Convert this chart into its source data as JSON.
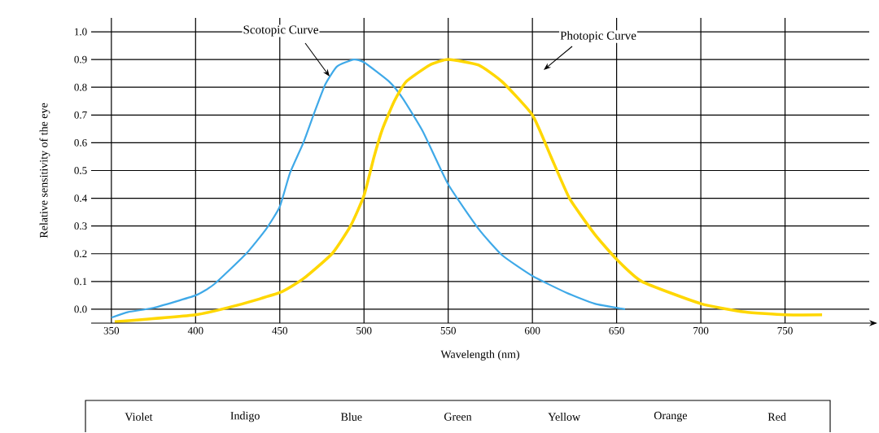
{
  "chart_data": {
    "type": "line",
    "xlabel": "Wavelength (nm)",
    "ylabel": "Relative sensitivity of the eye",
    "xlim": [
      338,
      800
    ],
    "ylim": [
      -0.05,
      1.05
    ],
    "xticks": [
      350,
      400,
      450,
      500,
      550,
      600,
      650,
      700,
      750
    ],
    "yticks": [
      {
        "value": 0,
        "label": "0.0"
      },
      0.1,
      0.2,
      0.3,
      0.4,
      0.5,
      0.6,
      0.7,
      0.8,
      0.9,
      {
        "value": 1,
        "label": "1.0"
      }
    ],
    "grid": true,
    "line_style": "solid",
    "marker": "none",
    "series": [
      {
        "color": "#3fa9e8",
        "x": [
          350,
          360,
          375,
          400,
          411,
          430,
          442,
          450,
          456,
          464,
          470,
          477,
          484,
          494,
          500,
          515,
          523,
          535,
          550,
          568,
          582,
          600,
          620,
          637,
          655
        ],
        "values": [
          -0.03,
          -0.01,
          0.005,
          0.05,
          0.09,
          0.2,
          0.29,
          0.37,
          0.49,
          0.6,
          0.7,
          0.81,
          0.875,
          0.9,
          0.89,
          0.82,
          0.76,
          0.64,
          0.45,
          0.29,
          0.195,
          0.12,
          0.06,
          0.02,
          0.0
        ]
      },
      {
        "color": "#ffd700",
        "x": [
          352,
          400,
          425,
          450,
          464,
          481,
          492,
          500,
          506,
          511,
          518,
          525,
          539,
          550,
          568,
          582,
          600,
          611,
          622,
          637,
          650,
          665,
          700,
          726,
          750,
          772
        ],
        "values": [
          -0.045,
          -0.02,
          0.015,
          0.06,
          0.11,
          0.2,
          0.3,
          0.41,
          0.55,
          0.65,
          0.75,
          0.82,
          0.88,
          0.9,
          0.88,
          0.82,
          0.7,
          0.55,
          0.4,
          0.27,
          0.18,
          0.1,
          0.02,
          -0.01,
          -0.02,
          -0.02
        ]
      }
    ],
    "annotations": [
      "Scotopic Curve",
      "Photopic Curve",
      "Violet",
      "Indigo",
      "Blue",
      "Green",
      "Yellow",
      "Orange",
      "Red"
    ]
  }
}
